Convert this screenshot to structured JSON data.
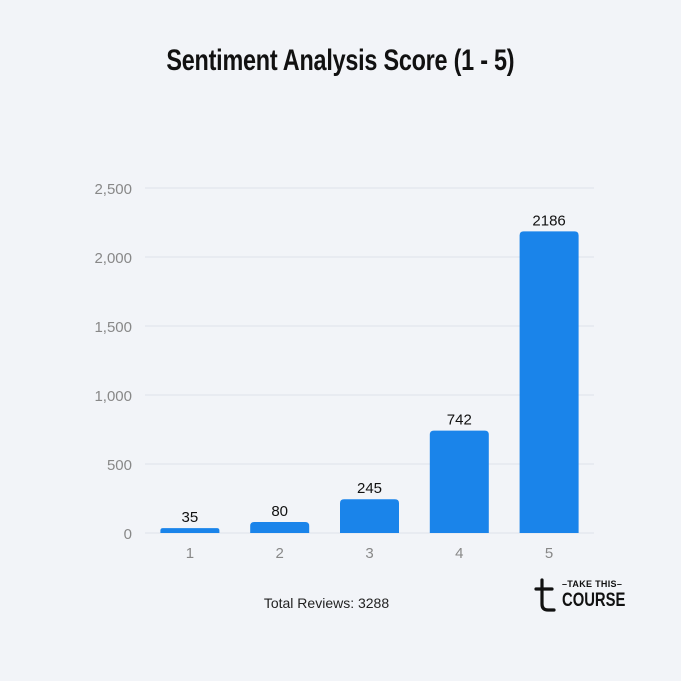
{
  "title": "Sentiment Analysis Score (1 - 5)",
  "footnote": "Total Reviews: 3288",
  "logo": {
    "top": "–TAKE THIS–",
    "bottom": "COURSE",
    "mark": "t"
  },
  "colors": {
    "bar": "#1a84ea",
    "background": "#f2f4f8",
    "grid": "#dde2ea",
    "tick": "#888888"
  },
  "chart_data": {
    "type": "bar",
    "categories": [
      "1",
      "2",
      "3",
      "4",
      "5"
    ],
    "values": [
      35,
      80,
      245,
      742,
      2186
    ],
    "data_labels": [
      "35",
      "80",
      "245",
      "742",
      "2186"
    ],
    "title": "Sentiment Analysis Score (1 - 5)",
    "xlabel": "",
    "ylabel": "",
    "ylim": [
      0,
      2500
    ],
    "yticks": [
      0,
      500,
      1000,
      1500,
      2000,
      2500
    ],
    "ytick_labels": [
      "0",
      "500",
      "1,000",
      "1,500",
      "2,000",
      "2,500"
    ],
    "grid": true,
    "legend": "none"
  }
}
